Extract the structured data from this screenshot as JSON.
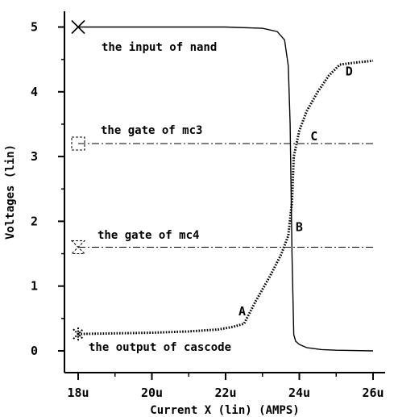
{
  "chart_data": {
    "type": "line",
    "title": "",
    "xlabel": "Current X (lin) (AMPS)",
    "ylabel": "Voltages (lin)",
    "xlim": [
      17.6,
      26.2
    ],
    "ylim": [
      -0.1,
      5.25
    ],
    "x_ticks": [
      18,
      20,
      22,
      24,
      26
    ],
    "x_tick_labels": [
      "18u",
      "20u",
      "22u",
      "24u",
      "26u"
    ],
    "y_ticks": [
      0,
      1,
      2,
      3,
      4,
      5
    ],
    "y_tick_labels": [
      "0",
      "1",
      "2",
      "3",
      "4",
      "5"
    ],
    "series": [
      {
        "name": "the input of nand",
        "style": "solid",
        "marker": "x",
        "x": [
          18,
          20,
          22,
          23,
          23.4,
          23.6,
          23.7,
          23.75,
          23.8,
          23.85,
          23.9,
          24.0,
          24.2,
          24.6,
          25.0,
          26.0
        ],
        "y": [
          5.0,
          5.0,
          5.0,
          4.98,
          4.93,
          4.8,
          4.4,
          3.5,
          1.5,
          0.25,
          0.15,
          0.1,
          0.05,
          0.02,
          0.01,
          0.0
        ]
      },
      {
        "name": "the gate of mc3",
        "style": "dashdot",
        "marker": "square",
        "x": [
          18,
          26
        ],
        "y": [
          3.2,
          3.2
        ]
      },
      {
        "name": "the gate of mc4",
        "style": "dashdot",
        "marker": "hourglass",
        "x": [
          18,
          26
        ],
        "y": [
          1.6,
          1.6
        ]
      },
      {
        "name": "the output of cascode",
        "style": "dotted",
        "marker": "asterisk",
        "x": [
          18,
          19,
          20,
          21,
          21.8,
          22.2,
          22.5,
          22.8,
          23.2,
          23.5,
          23.7,
          23.8,
          23.85,
          24.0,
          24.2,
          24.5,
          24.8,
          25.1,
          25.5,
          26.0
        ],
        "y": [
          0.26,
          0.27,
          0.28,
          0.3,
          0.33,
          0.37,
          0.42,
          0.75,
          1.15,
          1.48,
          1.78,
          2.3,
          3.0,
          3.4,
          3.7,
          4.0,
          4.25,
          4.42,
          4.45,
          4.48
        ]
      }
    ],
    "annotations": [
      {
        "text": "A",
        "x": 22.35,
        "y": 0.55
      },
      {
        "text": "B",
        "x": 23.9,
        "y": 1.85
      },
      {
        "text": "C",
        "x": 24.3,
        "y": 3.25
      },
      {
        "text": "D",
        "x": 25.25,
        "y": 4.25
      }
    ],
    "grid": false,
    "legend": "inline labels"
  }
}
